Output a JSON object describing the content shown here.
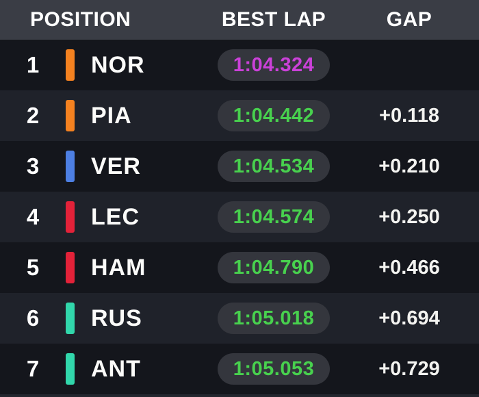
{
  "header": {
    "position": "POSITION",
    "best_lap": "BEST LAP",
    "gap": "GAP"
  },
  "colors": {
    "header_bg": "#3a3d45",
    "row_dark": "#14161c",
    "row_light": "#1f222a",
    "pill_bg": "#34363d",
    "header_text": "#ffffff",
    "row_text": "#fbfbf9",
    "lap_green": "#48d14e",
    "lap_magenta": "#cb41d9",
    "bar_orange": "#f58220",
    "bar_blue": "#4d7fe3",
    "bar_red": "#e32239",
    "bar_teal": "#31d7ab",
    "next_row_bg": "#23262e"
  },
  "chart_data": {
    "type": "table",
    "columns": [
      "POSITION",
      "BEST LAP",
      "GAP"
    ],
    "rows": [
      {
        "position": "1",
        "driver": "NOR",
        "team_color": "#f58220",
        "best_lap": "1:04.324",
        "lap_color": "#cb41d9",
        "gap": ""
      },
      {
        "position": "2",
        "driver": "PIA",
        "team_color": "#f58220",
        "best_lap": "1:04.442",
        "lap_color": "#48d14e",
        "gap": "+0.118"
      },
      {
        "position": "3",
        "driver": "VER",
        "team_color": "#4d7fe3",
        "best_lap": "1:04.534",
        "lap_color": "#48d14e",
        "gap": "+0.210"
      },
      {
        "position": "4",
        "driver": "LEC",
        "team_color": "#e32239",
        "best_lap": "1:04.574",
        "lap_color": "#48d14e",
        "gap": "+0.250"
      },
      {
        "position": "5",
        "driver": "HAM",
        "team_color": "#e32239",
        "best_lap": "1:04.790",
        "lap_color": "#48d14e",
        "gap": "+0.466"
      },
      {
        "position": "6",
        "driver": "RUS",
        "team_color": "#31d7ab",
        "best_lap": "1:05.018",
        "lap_color": "#48d14e",
        "gap": "+0.694"
      },
      {
        "position": "7",
        "driver": "ANT",
        "team_color": "#31d7ab",
        "best_lap": "1:05.053",
        "lap_color": "#48d14e",
        "gap": "+0.729"
      }
    ]
  }
}
